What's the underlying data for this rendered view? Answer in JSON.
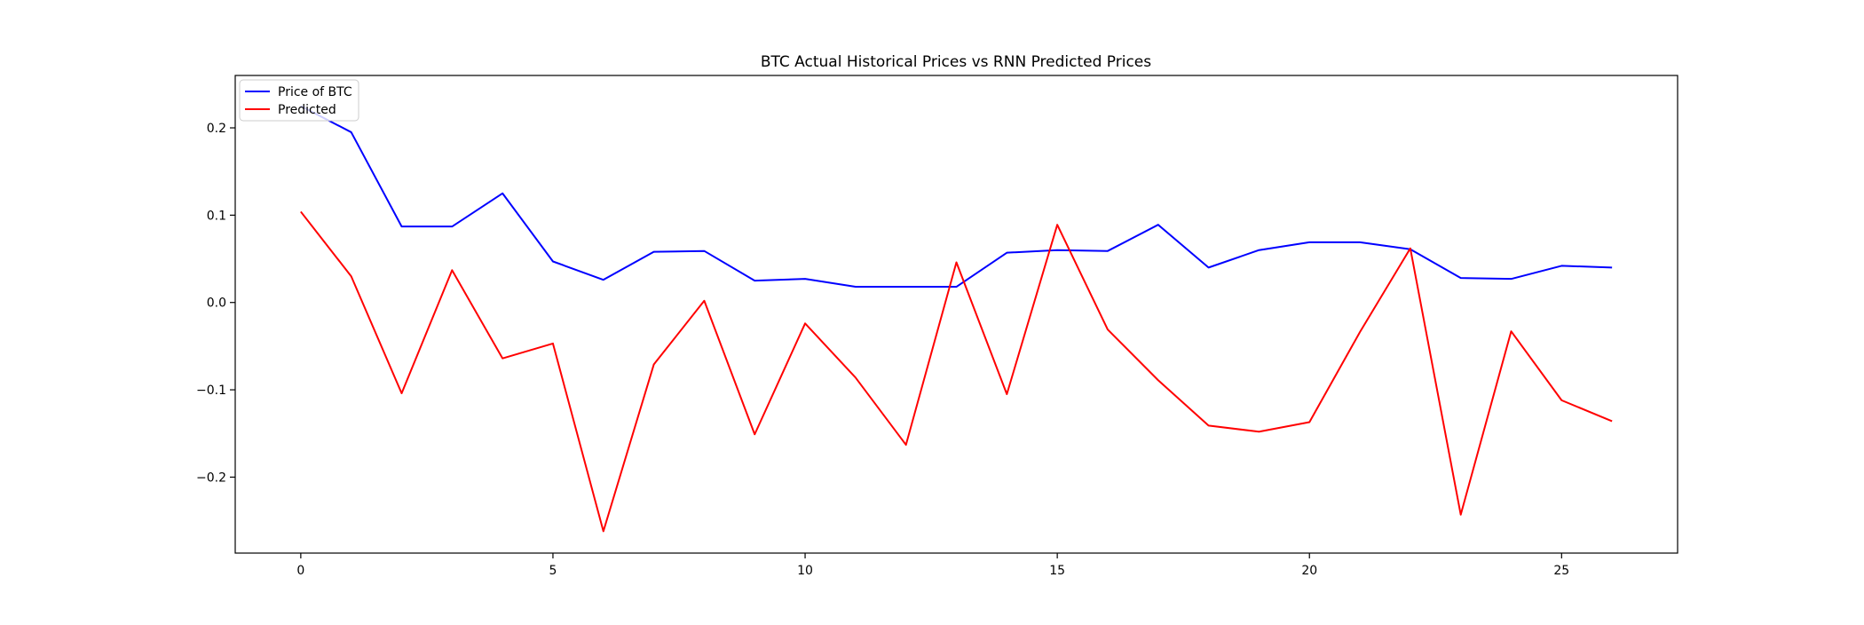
{
  "chart_data": {
    "type": "line",
    "title": "BTC Actual Historical Prices vs RNN Predicted Prices",
    "xlabel": "",
    "ylabel": "",
    "xlim": [
      -1.3,
      27.3
    ],
    "ylim": [
      -0.287,
      0.26
    ],
    "xticks": [
      0,
      5,
      10,
      15,
      20,
      25
    ],
    "xtick_labels": [
      "0",
      "5",
      "10",
      "15",
      "20",
      "25"
    ],
    "yticks": [
      -0.2,
      -0.1,
      0.0,
      0.1,
      0.2
    ],
    "ytick_labels": [
      "−0.2",
      "−0.1",
      "0.0",
      "0.1",
      "0.2"
    ],
    "grid": false,
    "legend_position": "upper-left",
    "x": [
      0,
      1,
      2,
      3,
      4,
      5,
      6,
      7,
      8,
      9,
      10,
      11,
      12,
      13,
      14,
      15,
      16,
      17,
      18,
      19,
      20,
      21,
      22,
      23,
      24,
      25,
      26
    ],
    "series": [
      {
        "name": "Price of BTC",
        "color": "#0000ff",
        "values": [
          0.225,
          0.195,
          0.087,
          0.087,
          0.125,
          0.047,
          0.026,
          0.058,
          0.059,
          0.025,
          0.027,
          0.018,
          0.018,
          0.018,
          0.057,
          0.06,
          0.059,
          0.089,
          0.04,
          0.06,
          0.069,
          0.069,
          0.061,
          0.028,
          0.027,
          0.042,
          0.04
        ]
      },
      {
        "name": "Predicted",
        "color": "#ff0000",
        "values": [
          0.104,
          0.03,
          -0.104,
          0.037,
          -0.064,
          -0.047,
          -0.262,
          -0.071,
          0.002,
          -0.151,
          -0.024,
          -0.086,
          -0.163,
          0.046,
          -0.105,
          0.089,
          -0.031,
          -0.089,
          -0.141,
          -0.148,
          -0.137,
          -0.034,
          0.062,
          -0.243,
          -0.033,
          -0.112,
          -0.136
        ]
      }
    ]
  }
}
